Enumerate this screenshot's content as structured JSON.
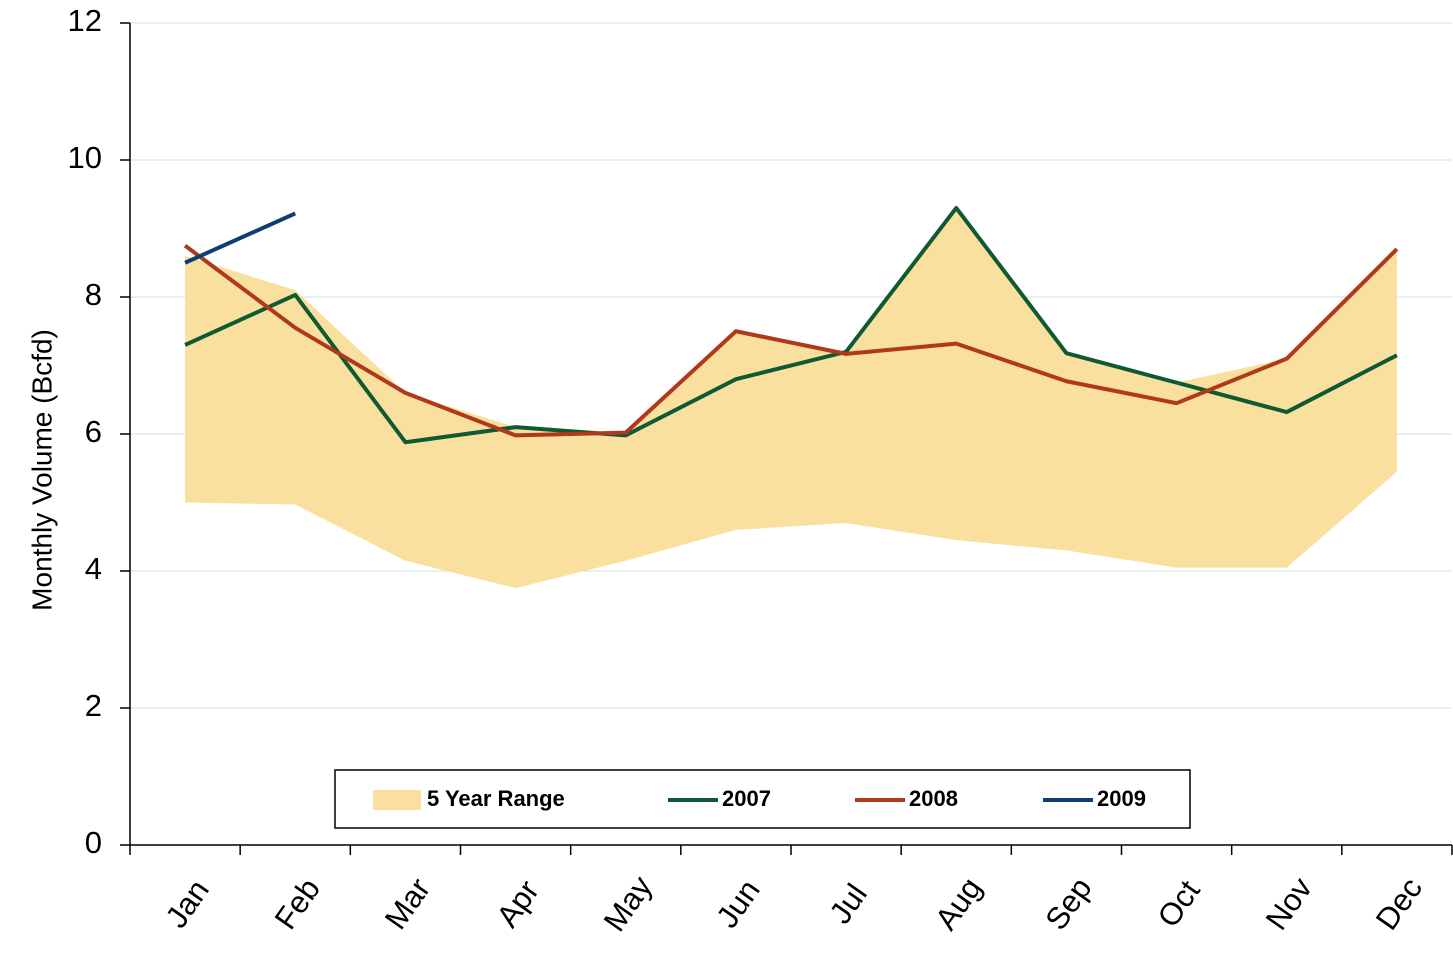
{
  "chart_data": {
    "type": "line",
    "y_label": "Monthly Volume (Bcfd)",
    "categories": [
      "Jan",
      "Feb",
      "Mar",
      "Apr",
      "May",
      "Jun",
      "Jul",
      "Aug",
      "Sep",
      "Oct",
      "Nov",
      "Dec"
    ],
    "range": {
      "name": "5 Year Range",
      "color": "#f9e09f",
      "high": [
        8.6,
        8.1,
        6.6,
        6.1,
        6.0,
        7.5,
        7.2,
        9.3,
        7.2,
        6.75,
        7.1,
        8.7
      ],
      "low": [
        5.0,
        4.97,
        4.15,
        3.75,
        4.15,
        4.6,
        4.7,
        4.45,
        4.3,
        4.05,
        4.05,
        5.45
      ]
    },
    "series": [
      {
        "name": "2007",
        "color": "#0f5a32",
        "values": [
          7.3,
          8.03,
          5.88,
          6.1,
          5.98,
          6.8,
          7.2,
          9.3,
          7.18,
          6.75,
          6.32,
          7.15
        ]
      },
      {
        "name": "2008",
        "color": "#b0381c",
        "values": [
          8.75,
          7.55,
          6.6,
          5.98,
          6.02,
          7.5,
          7.17,
          7.32,
          6.77,
          6.45,
          7.1,
          8.7
        ]
      },
      {
        "name": "2009",
        "color": "#0d3f73",
        "values": [
          8.5,
          9.22,
          null,
          null,
          null,
          null,
          null,
          null,
          null,
          null,
          null,
          null
        ]
      }
    ],
    "ylim": [
      0,
      12
    ],
    "yticks": [
      0,
      2,
      4,
      6,
      8,
      10,
      12
    ],
    "grid": true
  }
}
